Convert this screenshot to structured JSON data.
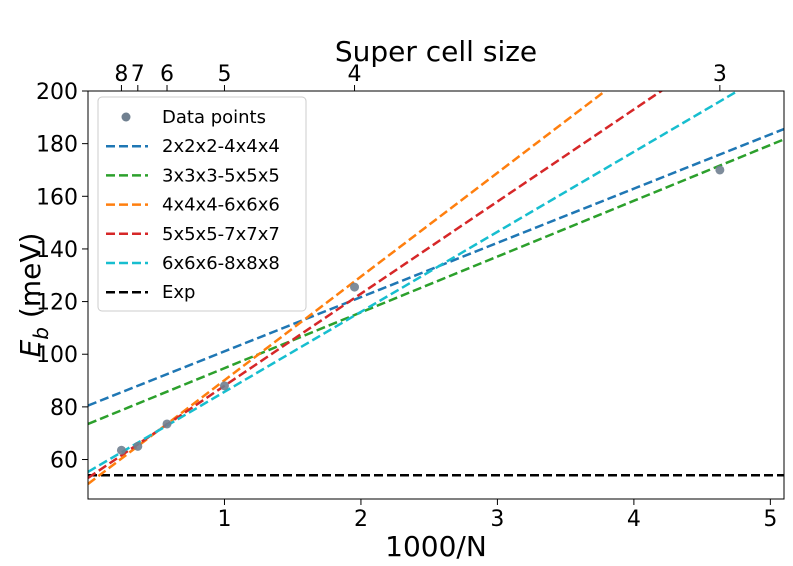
{
  "chart_data": {
    "type": "line",
    "title": "",
    "xlabel": "1000/N",
    "ylabel": "E_b (meV)",
    "ylabel_main": "E",
    "ylabel_sub": "b",
    "ylabel_unit": " (meV)",
    "top_xlabel": "Super cell size",
    "xlim": [
      0.0,
      5.1
    ],
    "ylim": [
      45,
      200
    ],
    "x_ticks": [
      1,
      2,
      3,
      4,
      5
    ],
    "x_tick_labels": [
      "1",
      "2",
      "3",
      "4",
      "5"
    ],
    "y_ticks": [
      60,
      80,
      100,
      120,
      140,
      160,
      180,
      200
    ],
    "y_tick_labels": [
      "60",
      "80",
      "100",
      "120",
      "140",
      "160",
      "180",
      "200"
    ],
    "top_ticks": [
      {
        "label": "8",
        "x": 0.245
      },
      {
        "label": "7",
        "x": 0.365
      },
      {
        "label": "6",
        "x": 0.579
      },
      {
        "label": "5",
        "x": 1.0
      },
      {
        "label": "4",
        "x": 1.953
      },
      {
        "label": "3",
        "x": 4.63
      }
    ],
    "scatter": {
      "name": "Data points",
      "color": "#708090",
      "points": [
        {
          "x": 0.245,
          "y": 63.5
        },
        {
          "x": 0.365,
          "y": 65.0
        },
        {
          "x": 0.579,
          "y": 73.5
        },
        {
          "x": 1.0,
          "y": 88.0
        },
        {
          "x": 1.953,
          "y": 125.5
        },
        {
          "x": 4.63,
          "y": 170.0
        }
      ]
    },
    "series": [
      {
        "name": "2x2x2-4x4x4",
        "color": "#1f77b4",
        "slope": 20.6,
        "intercept": 80.5
      },
      {
        "name": "3x3x3-5x5x5",
        "color": "#2ca02c",
        "slope": 21.2,
        "intercept": 73.5
      },
      {
        "name": "4x4x4-6x6x6",
        "color": "#ff7f0e",
        "slope": 39.4,
        "intercept": 50.7
      },
      {
        "name": "5x5x5-7x7x7",
        "color": "#d62728",
        "slope": 35.0,
        "intercept": 53.0
      },
      {
        "name": "6x6x6-8x8x8",
        "color": "#17becf",
        "slope": 30.4,
        "intercept": 55.3
      }
    ],
    "exp": {
      "name": "Exp",
      "color": "#000000",
      "y": 54.0
    },
    "legend_location": "top-left",
    "grid": false
  }
}
